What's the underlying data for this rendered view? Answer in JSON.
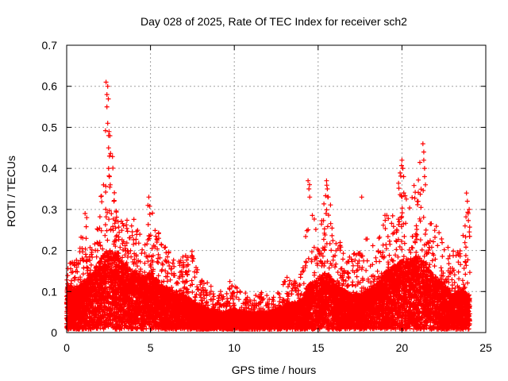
{
  "chart_data": {
    "type": "scatter",
    "title": "Day 028 of 2025, Rate Of TEC Index for receiver sch2",
    "xlabel": "GPS time / hours",
    "ylabel": "ROTI / TECUs",
    "xlim": [
      0,
      25
    ],
    "ylim": [
      0,
      0.7
    ],
    "xticks": [
      "0",
      "5",
      "10",
      "15",
      "20",
      "25"
    ],
    "yticks": [
      "0",
      "0.1",
      "0.2",
      "0.3",
      "0.4",
      "0.5",
      "0.6",
      "0.7"
    ],
    "grid": true,
    "marker": "plus",
    "color": "#ff0000",
    "envelope": {
      "x": [
        0,
        0.5,
        1,
        1.5,
        2,
        2.5,
        3,
        3.5,
        4,
        4.5,
        5,
        5.5,
        6,
        6.5,
        7,
        7.5,
        8,
        8.5,
        9,
        9.5,
        10,
        10.5,
        11,
        11.5,
        12,
        12.5,
        13,
        13.5,
        14,
        14.5,
        15,
        15.5,
        16,
        16.5,
        17,
        17.5,
        18,
        18.5,
        19,
        19.5,
        20,
        20.5,
        21,
        21.5,
        22,
        22.5,
        23,
        23.5,
        24
      ],
      "typical": [
        0.08,
        0.07,
        0.08,
        0.1,
        0.12,
        0.14,
        0.13,
        0.11,
        0.1,
        0.09,
        0.1,
        0.08,
        0.07,
        0.06,
        0.06,
        0.05,
        0.04,
        0.035,
        0.03,
        0.03,
        0.035,
        0.03,
        0.03,
        0.03,
        0.03,
        0.035,
        0.04,
        0.045,
        0.05,
        0.08,
        0.09,
        0.1,
        0.08,
        0.07,
        0.06,
        0.06,
        0.07,
        0.08,
        0.1,
        0.11,
        0.12,
        0.12,
        0.13,
        0.11,
        0.09,
        0.08,
        0.06,
        0.07,
        0.06
      ],
      "max": [
        0.2,
        0.17,
        0.29,
        0.2,
        0.31,
        0.61,
        0.28,
        0.27,
        0.3,
        0.26,
        0.33,
        0.25,
        0.2,
        0.18,
        0.19,
        0.2,
        0.13,
        0.12,
        0.1,
        0.12,
        0.13,
        0.1,
        0.09,
        0.1,
        0.09,
        0.1,
        0.14,
        0.13,
        0.15,
        0.37,
        0.22,
        0.37,
        0.28,
        0.2,
        0.19,
        0.2,
        0.24,
        0.24,
        0.29,
        0.29,
        0.42,
        0.3,
        0.46,
        0.27,
        0.28,
        0.22,
        0.2,
        0.2,
        0.34
      ]
    },
    "peaks": [
      {
        "x": 2.35,
        "y": 0.61
      },
      {
        "x": 2.4,
        "y": 0.58
      },
      {
        "x": 2.45,
        "y": 0.6
      },
      {
        "x": 2.4,
        "y": 0.55
      },
      {
        "x": 2.45,
        "y": 0.51
      },
      {
        "x": 2.5,
        "y": 0.48
      },
      {
        "x": 2.5,
        "y": 0.45
      },
      {
        "x": 2.55,
        "y": 0.43
      },
      {
        "x": 2.5,
        "y": 0.4
      },
      {
        "x": 2.55,
        "y": 0.38
      },
      {
        "x": 2.6,
        "y": 0.36
      },
      {
        "x": 1.1,
        "y": 0.29
      },
      {
        "x": 1.2,
        "y": 0.28
      },
      {
        "x": 4.9,
        "y": 0.33
      },
      {
        "x": 4.85,
        "y": 0.31
      },
      {
        "x": 14.4,
        "y": 0.37
      },
      {
        "x": 14.45,
        "y": 0.35
      },
      {
        "x": 14.5,
        "y": 0.33
      },
      {
        "x": 15.5,
        "y": 0.37
      },
      {
        "x": 15.55,
        "y": 0.35
      },
      {
        "x": 15.6,
        "y": 0.33
      },
      {
        "x": 17.6,
        "y": 0.33
      },
      {
        "x": 20.0,
        "y": 0.42
      },
      {
        "x": 20.05,
        "y": 0.4
      },
      {
        "x": 20.1,
        "y": 0.38
      },
      {
        "x": 21.25,
        "y": 0.46
      },
      {
        "x": 21.3,
        "y": 0.44
      },
      {
        "x": 21.3,
        "y": 0.42
      },
      {
        "x": 21.35,
        "y": 0.4
      },
      {
        "x": 21.35,
        "y": 0.38
      },
      {
        "x": 21.4,
        "y": 0.36
      },
      {
        "x": 23.85,
        "y": 0.34
      },
      {
        "x": 23.9,
        "y": 0.32
      },
      {
        "x": 23.95,
        "y": 0.29
      }
    ]
  }
}
